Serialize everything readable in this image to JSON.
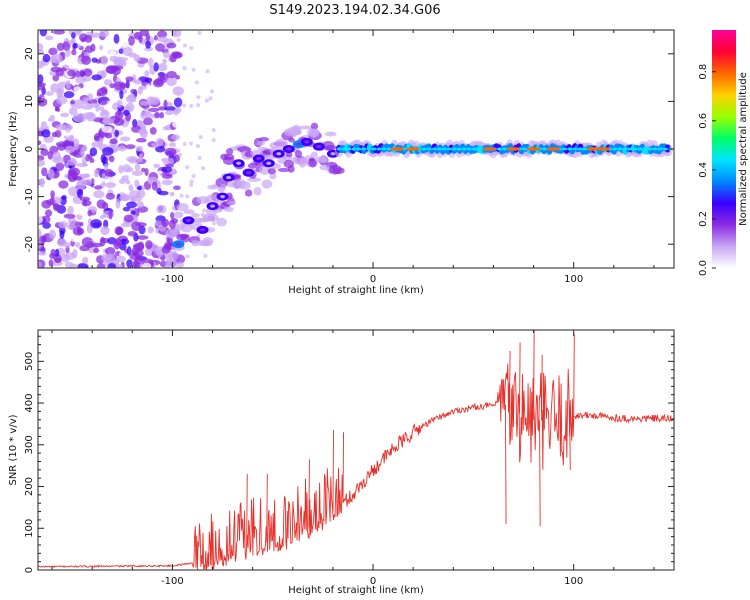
{
  "title": "S149.2023.194.02.34.G06",
  "chart_data": [
    {
      "type": "heatmap",
      "xlabel": "Height of straight line (km)",
      "ylabel": "Frequency (Hz)",
      "xlim": [
        -167,
        150
      ],
      "ylim": [
        -25,
        25
      ],
      "x_ticks": [
        -100,
        0,
        100
      ],
      "y_ticks": [
        -20,
        -10,
        0,
        10,
        20
      ],
      "colorbar": {
        "label": "Normalized spectral amplitude",
        "range": [
          0.0,
          0.97
        ],
        "ticks": [
          0.0,
          0.2,
          0.4,
          0.6,
          0.8
        ],
        "colors": [
          "#ffffff",
          "#c9a6f5",
          "#8a2be2",
          "#3a00ff",
          "#0088ff",
          "#00e5ff",
          "#00ff66",
          "#9cff00",
          "#ffd000",
          "#ff6600",
          "#ff0033",
          "#ff0099"
        ]
      },
      "ridge_points": [
        {
          "x": -97,
          "y": -20,
          "a": 0.45
        },
        {
          "x": -92,
          "y": -15,
          "a": 0.35
        },
        {
          "x": -85,
          "y": -17,
          "a": 0.35
        },
        {
          "x": -80,
          "y": -12,
          "a": 0.3
        },
        {
          "x": -75,
          "y": -10,
          "a": 0.3
        },
        {
          "x": -72,
          "y": -6,
          "a": 0.3
        },
        {
          "x": -67,
          "y": -3,
          "a": 0.3
        },
        {
          "x": -62,
          "y": -5,
          "a": 0.35
        },
        {
          "x": -57,
          "y": -2,
          "a": 0.35
        },
        {
          "x": -52,
          "y": -3,
          "a": 0.3
        },
        {
          "x": -47,
          "y": -1,
          "a": 0.3
        },
        {
          "x": -42,
          "y": 0,
          "a": 0.35
        },
        {
          "x": -37,
          "y": 1,
          "a": 0.4
        },
        {
          "x": -33,
          "y": 1.5,
          "a": 0.35
        },
        {
          "x": -27,
          "y": 0.5,
          "a": 0.35
        },
        {
          "x": -20,
          "y": -1,
          "a": 0.3
        }
      ],
      "band": {
        "x_start": -17,
        "x_end": 148,
        "center_hz": 0,
        "hot_spots": [
          12,
          20,
          58,
          70,
          80,
          90,
          110,
          115
        ]
      }
    },
    {
      "type": "line",
      "xlabel": "Height of straight line (km)",
      "ylabel": "SNR (10 * v/v)",
      "xlim": [
        -167,
        150
      ],
      "ylim": [
        0,
        575
      ],
      "x_ticks": [
        -100,
        0,
        100
      ],
      "y_ticks": [
        0,
        100,
        200,
        300,
        400,
        500
      ],
      "color": "#e8302a",
      "series": [
        {
          "baseline": [
            [
              -167,
              8
            ],
            [
              -100,
              10
            ],
            [
              -85,
              20
            ],
            [
              -70,
              45
            ],
            [
              -60,
              60
            ],
            [
              -50,
              70
            ],
            [
              -40,
              80
            ],
            [
              -30,
              110
            ],
            [
              -20,
              140
            ],
            [
              -10,
              180
            ],
            [
              0,
              240
            ],
            [
              10,
              290
            ],
            [
              20,
              330
            ],
            [
              30,
              360
            ],
            [
              40,
              380
            ],
            [
              50,
              390
            ],
            [
              60,
              395
            ],
            [
              65,
              400
            ],
            [
              70,
              380
            ],
            [
              80,
              360
            ],
            [
              90,
              355
            ],
            [
              100,
              370
            ],
            [
              110,
              370
            ],
            [
              120,
              365
            ],
            [
              130,
              362
            ],
            [
              140,
              363
            ],
            [
              150,
              362
            ]
          ],
          "peaks": [
            [
              -63,
              230
            ],
            [
              -53,
              230
            ],
            [
              -32,
              265
            ],
            [
              -20,
              335
            ],
            [
              -15,
              330
            ],
            [
              68,
              525
            ],
            [
              73,
              545
            ],
            [
              80,
              575
            ],
            [
              84,
              515
            ],
            [
              100,
              565
            ]
          ],
          "dips": [
            [
              66,
              110
            ],
            [
              83,
              105
            ],
            [
              98,
              240
            ]
          ]
        }
      ]
    }
  ]
}
